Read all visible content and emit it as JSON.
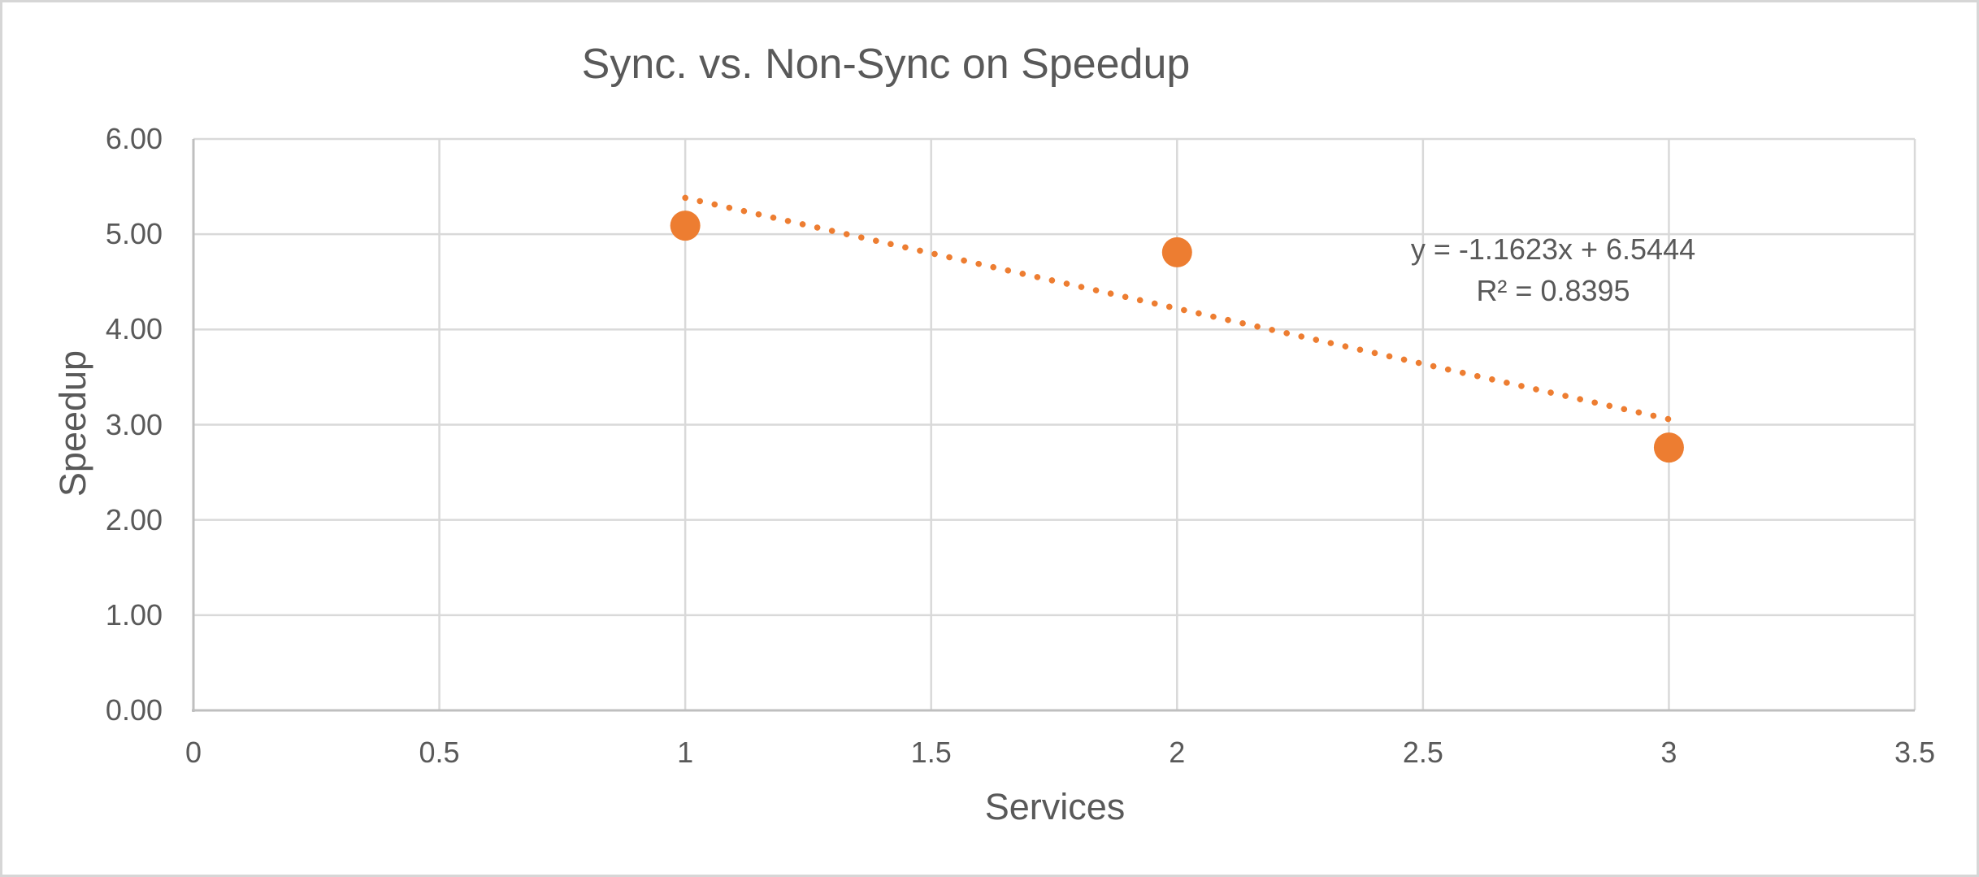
{
  "chart": {
    "title": "Sync. vs. Non-Sync on Speedup",
    "x_axis_title": "Services",
    "y_axis_title": "Speedup",
    "trendline_equation": "y = -1.1623x + 6.5444",
    "trendline_r2": "R² = 0.8395"
  },
  "chart_data": {
    "type": "scatter",
    "title": "Sync. vs. Non-Sync on Speedup",
    "xlabel": "Services",
    "ylabel": "Speedup",
    "series": [
      {
        "name": "Speedup",
        "x": [
          1,
          2,
          3
        ],
        "y": [
          5.09,
          4.81,
          2.76
        ]
      }
    ],
    "trendline": {
      "type": "linear",
      "slope": -1.1623,
      "intercept": 6.5444,
      "r_squared": 0.8395,
      "equation_label": "y = -1.1623x + 6.5444",
      "r2_label": "R² = 0.8395",
      "x_start": 1,
      "x_end": 3,
      "style": "dotted"
    },
    "xlim": [
      0,
      3.5
    ],
    "ylim": [
      0,
      6
    ],
    "x_ticks": [
      "0",
      "0.5",
      "1",
      "1.5",
      "2",
      "2.5",
      "3",
      "3.5"
    ],
    "y_ticks": [
      "0.00",
      "1.00",
      "2.00",
      "3.00",
      "4.00",
      "5.00",
      "6.00"
    ],
    "grid": true,
    "legend": false,
    "marker": "circle",
    "colors": {
      "series": "#ED7D31",
      "text": "#595959",
      "gridline": "#D9D9D9",
      "axis_line": "#BFBFBF",
      "background": "#FFFFFF",
      "border": "#D6D6D6"
    }
  }
}
